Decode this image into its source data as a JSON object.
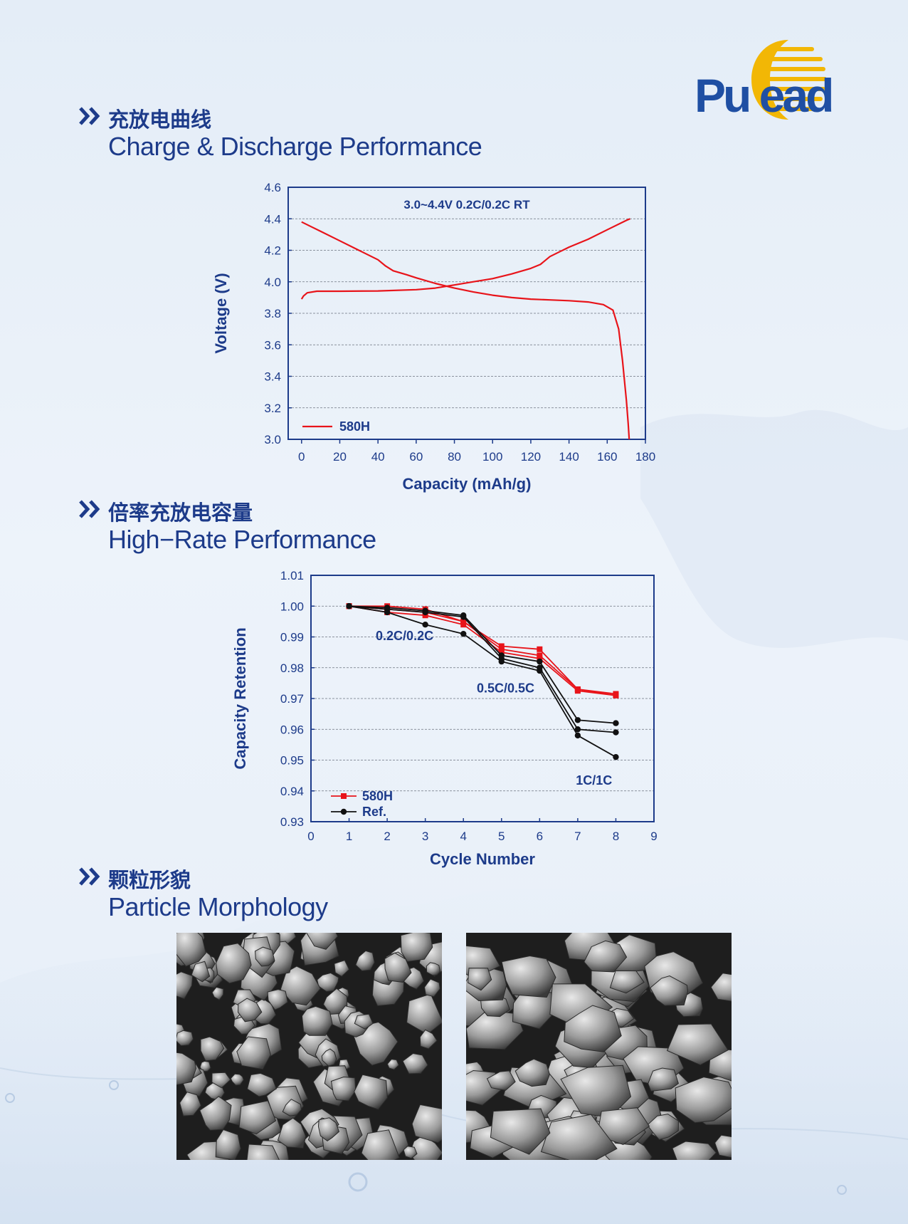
{
  "logo": {
    "text": "Pu  ead"
  },
  "sections": [
    {
      "cn": "充放电曲线",
      "en": "Charge & Discharge Performance"
    },
    {
      "cn": "倍率充放电容量",
      "en": "High−Rate Performance"
    },
    {
      "cn": "颗粒形貌",
      "en": "Particle Morphology"
    }
  ],
  "colors": {
    "accent": "#1d3b8a",
    "series_red": "#e8141a",
    "series_black": "#111111",
    "logo_yellow": "#f2b705"
  },
  "chart_data": [
    {
      "type": "line",
      "annotation": "3.0~4.4V  0.2C/0.2C  RT",
      "xlabel": "Capacity (mAh/g)",
      "ylabel": "Voltage (V)",
      "xlim": [
        -7,
        180
      ],
      "ylim": [
        3.0,
        4.6
      ],
      "xticks": [
        0,
        20,
        40,
        60,
        80,
        100,
        120,
        140,
        160,
        180
      ],
      "yticks": [
        "3.0",
        "3.2",
        "3.4",
        "3.6",
        "3.8",
        "4.0",
        "4.2",
        "4.4",
        "4.6"
      ],
      "grid": true,
      "legend": "bottom-left",
      "series": [
        {
          "name": "580H",
          "segment": "charge",
          "x": [
            0,
            1,
            3,
            8,
            20,
            40,
            60,
            70,
            80,
            90,
            100,
            110,
            120,
            125,
            130,
            135,
            140,
            150,
            160,
            170,
            172
          ],
          "y": [
            3.89,
            3.91,
            3.93,
            3.94,
            3.94,
            3.942,
            3.95,
            3.96,
            3.98,
            4.0,
            4.02,
            4.05,
            4.085,
            4.11,
            4.16,
            4.19,
            4.22,
            4.27,
            4.33,
            4.39,
            4.4
          ]
        },
        {
          "name": "580H",
          "segment": "discharge",
          "x": [
            0,
            5,
            10,
            20,
            30,
            40,
            44,
            48,
            55,
            60,
            70,
            80,
            90,
            100,
            110,
            120,
            130,
            140,
            150,
            158,
            163,
            166,
            168,
            170,
            171,
            171.5
          ],
          "y": [
            4.38,
            4.35,
            4.32,
            4.26,
            4.2,
            4.14,
            4.1,
            4.07,
            4.045,
            4.025,
            3.99,
            3.96,
            3.935,
            3.915,
            3.9,
            3.89,
            3.885,
            3.88,
            3.872,
            3.855,
            3.82,
            3.7,
            3.5,
            3.25,
            3.1,
            3.0
          ]
        }
      ]
    },
    {
      "type": "line",
      "xlabel": "Cycle Number",
      "ylabel": "Capacity Retention",
      "xlim": [
        0,
        9
      ],
      "ylim": [
        0.93,
        1.01
      ],
      "xticks": [
        0,
        1,
        2,
        3,
        4,
        5,
        6,
        7,
        8,
        9
      ],
      "yticks": [
        "0.93",
        "0.94",
        "0.95",
        "0.96",
        "0.97",
        "0.98",
        "0.99",
        "1.00",
        "1.01"
      ],
      "grid": true,
      "legend": "bottom-left",
      "legend_entries": [
        "580H",
        "Ref."
      ],
      "annotations": [
        {
          "text": "0.2C/0.2C",
          "x": 1.7,
          "y": 0.989
        },
        {
          "text": "0.5C/0.5C",
          "x": 4.35,
          "y": 0.972
        },
        {
          "text": "1C/1C",
          "x": 6.95,
          "y": 0.942
        }
      ],
      "series": [
        {
          "name": "580H",
          "x": [
            1,
            2,
            3,
            4,
            5,
            6,
            7,
            8
          ],
          "y": [
            1.0,
            1.0,
            0.999,
            0.995,
            0.987,
            0.986,
            0.973,
            0.9715
          ]
        },
        {
          "name": "580H",
          "x": [
            1,
            2,
            3,
            4,
            5,
            6,
            7,
            8
          ],
          "y": [
            1.0,
            0.999,
            0.998,
            0.995,
            0.986,
            0.984,
            0.973,
            0.971
          ]
        },
        {
          "name": "580H",
          "x": [
            1,
            2,
            3,
            4,
            5,
            6,
            7,
            8
          ],
          "y": [
            1.0,
            0.998,
            0.997,
            0.994,
            0.985,
            0.983,
            0.9725,
            0.971
          ]
        },
        {
          "name": "Ref.",
          "x": [
            1,
            2,
            3,
            4,
            5,
            6,
            7,
            8
          ],
          "y": [
            1.0,
            0.9995,
            0.9985,
            0.997,
            0.984,
            0.982,
            0.963,
            0.962
          ]
        },
        {
          "name": "Ref.",
          "x": [
            1,
            2,
            3,
            4,
            5,
            6,
            7,
            8
          ],
          "y": [
            1.0,
            0.999,
            0.998,
            0.9965,
            0.983,
            0.98,
            0.96,
            0.959
          ]
        },
        {
          "name": "Ref.",
          "x": [
            1,
            2,
            3,
            4,
            5,
            6,
            7,
            8
          ],
          "y": [
            1.0,
            0.998,
            0.994,
            0.991,
            0.982,
            0.979,
            0.958,
            0.951
          ]
        }
      ]
    }
  ]
}
